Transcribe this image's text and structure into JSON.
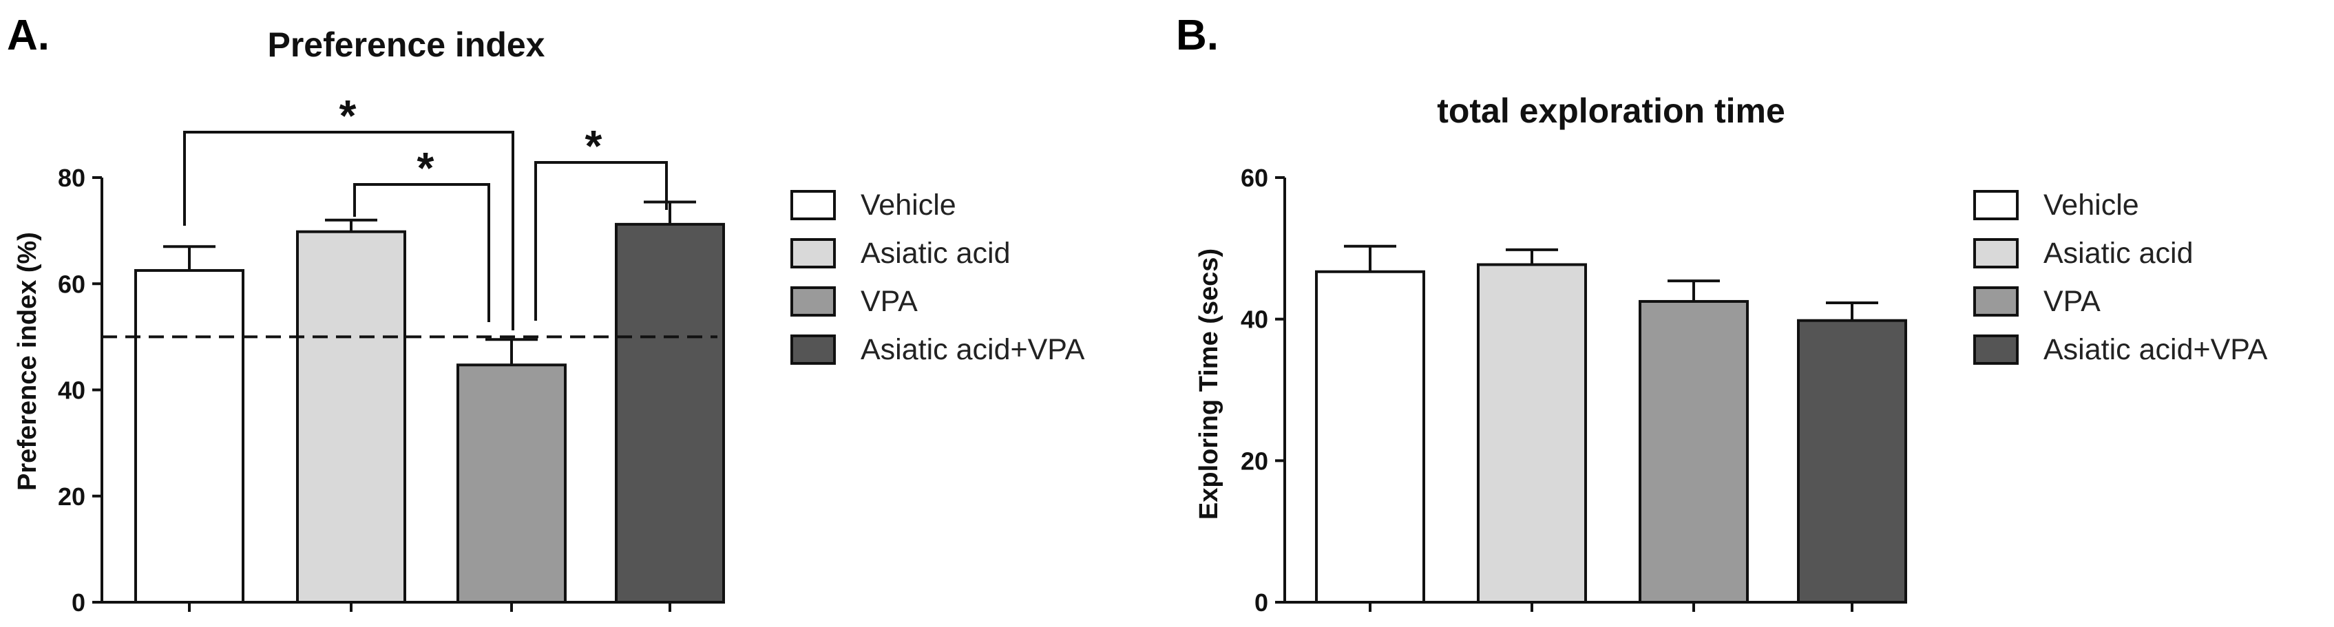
{
  "panels": {
    "a": {
      "letter": "A."
    },
    "b": {
      "letter": "B."
    }
  },
  "chart_data": [
    {
      "type": "bar",
      "title": "Preference index",
      "xlabel": "",
      "ylabel": "Preference index (%)",
      "ylim": [
        0,
        80
      ],
      "yticks": [
        0,
        20,
        40,
        60,
        80
      ],
      "categories": [
        "Vehicle",
        "Asiatic acid",
        "VPA",
        "Asiatic acid+VPA"
      ],
      "values": [
        62.5,
        69.8,
        44.7,
        71.2
      ],
      "errors": [
        4.5,
        2.2,
        4.8,
        4.2
      ],
      "colors": [
        "#ffffff",
        "#d9d9d9",
        "#9a9a9a",
        "#555555"
      ],
      "reference_line": 50,
      "significance": [
        {
          "from": "Vehicle",
          "to": "VPA",
          "label": "*"
        },
        {
          "from": "Asiatic acid",
          "to": "VPA",
          "label": "*"
        },
        {
          "from": "VPA",
          "to": "Asiatic acid+VPA",
          "label": "*"
        }
      ],
      "legend": [
        "Vehicle",
        "Asiatic acid",
        "VPA",
        "Asiatic acid+VPA"
      ],
      "legend_position": "right",
      "grid": false
    },
    {
      "type": "bar",
      "title": "total exploration time",
      "xlabel": "",
      "ylabel": "Exploring Time (secs)",
      "ylim": [
        0,
        60
      ],
      "yticks": [
        0,
        20,
        40,
        60
      ],
      "categories": [
        "Vehicle",
        "Asiatic acid",
        "VPA",
        "Asiatic acid+VPA"
      ],
      "values": [
        46.7,
        47.7,
        42.5,
        39.8
      ],
      "errors": [
        3.6,
        2.1,
        2.9,
        2.5
      ],
      "colors": [
        "#ffffff",
        "#d9d9d9",
        "#9a9a9a",
        "#555555"
      ],
      "legend": [
        "Vehicle",
        "Asiatic acid",
        "VPA",
        "Asiatic acid+VPA"
      ],
      "legend_position": "right",
      "grid": false
    }
  ]
}
